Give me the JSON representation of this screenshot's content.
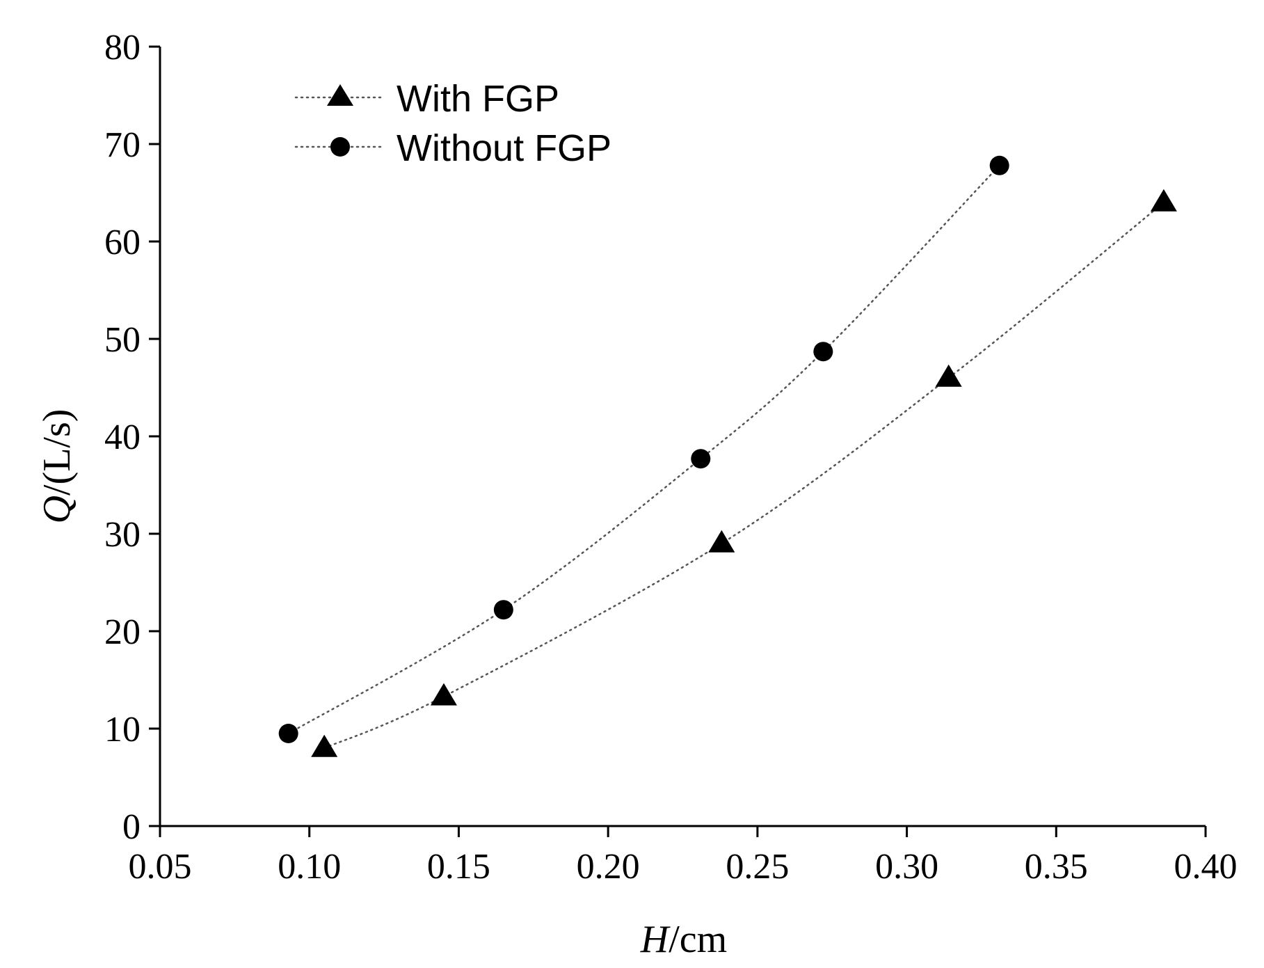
{
  "chart_data": {
    "type": "scatter",
    "title": "",
    "xlabel": {
      "var": "H",
      "unit": "/cm"
    },
    "ylabel": {
      "var": "Q",
      "unit": "/(L/s)"
    },
    "xlim": [
      0.05,
      0.4
    ],
    "ylim": [
      0,
      80
    ],
    "xticks": [
      "0.05",
      "0.10",
      "0.15",
      "0.20",
      "0.25",
      "0.30",
      "0.35",
      "0.40"
    ],
    "yticks": [
      "0",
      "10",
      "20",
      "30",
      "40",
      "50",
      "60",
      "70",
      "80"
    ],
    "grid": false,
    "legend_position": "top-left",
    "series": [
      {
        "name": "With FGP",
        "marker": "triangle",
        "line": "dotted",
        "x": [
          0.105,
          0.145,
          0.238,
          0.314,
          0.386
        ],
        "y": [
          8.0,
          13.3,
          29.0,
          46.0,
          64.0
        ]
      },
      {
        "name": "Without FGP",
        "marker": "circle",
        "line": "dotted",
        "x": [
          0.093,
          0.165,
          0.231,
          0.272,
          0.331
        ],
        "y": [
          9.5,
          22.2,
          37.7,
          48.7,
          67.8
        ]
      }
    ]
  }
}
